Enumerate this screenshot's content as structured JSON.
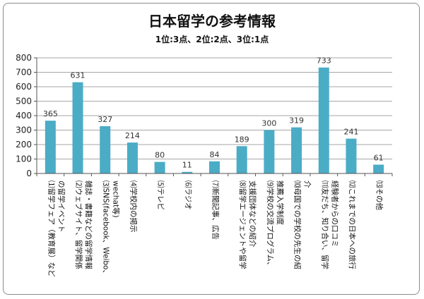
{
  "chart_data": {
    "type": "bar",
    "title": "日本留学の参考情報",
    "subtitle": "1位:3点、2位:2点、3位:1点",
    "xlabel": "",
    "ylabel": "",
    "ylim": [
      0,
      800
    ],
    "yticks": [
      0,
      100,
      200,
      300,
      400,
      500,
      600,
      700,
      800
    ],
    "grid": true,
    "legend": "none",
    "bar_color": "#4bacc6",
    "categories": [
      [
        "⑴留学フェア（教育展）など",
        "の留学イベント"
      ],
      [
        "⑵ウェブサイト、留学関係",
        "雑誌・書籍などの留学情報"
      ],
      [
        "⑶SNS(facebook、Weibo、",
        "wechat等)"
      ],
      [
        "⑷学校内の掲示"
      ],
      [
        "⑸テレビ"
      ],
      [
        "⑹ラジオ"
      ],
      [
        "⑺新聞記事、広告"
      ],
      [
        "⑻留学エージェントや留学",
        "支援団体などの紹介"
      ],
      [
        "⑼学校の交流プログラム、",
        "推薦入学制度"
      ],
      [
        "⑽母国での学校の先生の紹",
        "介"
      ],
      [
        "⑾友だち、知り合い、留学",
        "経験者からの口コミ"
      ],
      [
        "⑿これまでの日本への旅行"
      ],
      [
        "⒀その他"
      ]
    ],
    "values": [
      365,
      631,
      327,
      214,
      80,
      11,
      84,
      189,
      300,
      319,
      733,
      241,
      61
    ]
  }
}
